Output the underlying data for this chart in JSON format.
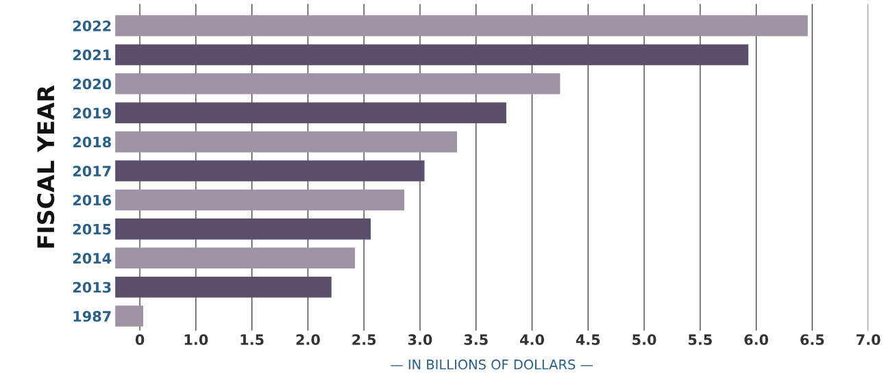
{
  "chart_data": {
    "type": "bar",
    "orientation": "horizontal",
    "xlabel": "— IN BILLIONS OF DOLLARS —",
    "ylabel": "FISCAL YEAR",
    "categories": [
      "2022",
      "2021",
      "2020",
      "2019",
      "2018",
      "2017",
      "2016",
      "2015",
      "2014",
      "2013",
      "1987"
    ],
    "values": [
      6.46,
      5.93,
      4.25,
      3.77,
      3.33,
      3.04,
      2.86,
      2.56,
      2.42,
      2.21,
      0.53
    ],
    "colors": [
      "#9f92a4",
      "#5b4f6b",
      "#9f92a4",
      "#5b4f6b",
      "#9f92a4",
      "#5b4f6b",
      "#9f92a4",
      "#5b4f6b",
      "#9f92a4",
      "#5b4f6b",
      "#9f92a4"
    ],
    "xlim": [
      0.28,
      7.0
    ],
    "xticks": [
      {
        "value": 0.5,
        "label": "0"
      },
      {
        "value": 1.0,
        "label": "1.0"
      },
      {
        "value": 1.5,
        "label": "1.5"
      },
      {
        "value": 2.0,
        "label": "2.0"
      },
      {
        "value": 2.5,
        "label": "2.5"
      },
      {
        "value": 3.0,
        "label": "3.0"
      },
      {
        "value": 3.5,
        "label": "3.5"
      },
      {
        "value": 4.0,
        "label": "4.0"
      },
      {
        "value": 4.5,
        "label": "4.5"
      },
      {
        "value": 5.0,
        "label": "5.0"
      },
      {
        "value": 5.5,
        "label": "5.5"
      },
      {
        "value": 6.0,
        "label": "6.0"
      },
      {
        "value": 6.5,
        "label": "6.5"
      },
      {
        "value": 7.0,
        "label": "7.0"
      }
    ],
    "grid": "x",
    "legend": false
  }
}
